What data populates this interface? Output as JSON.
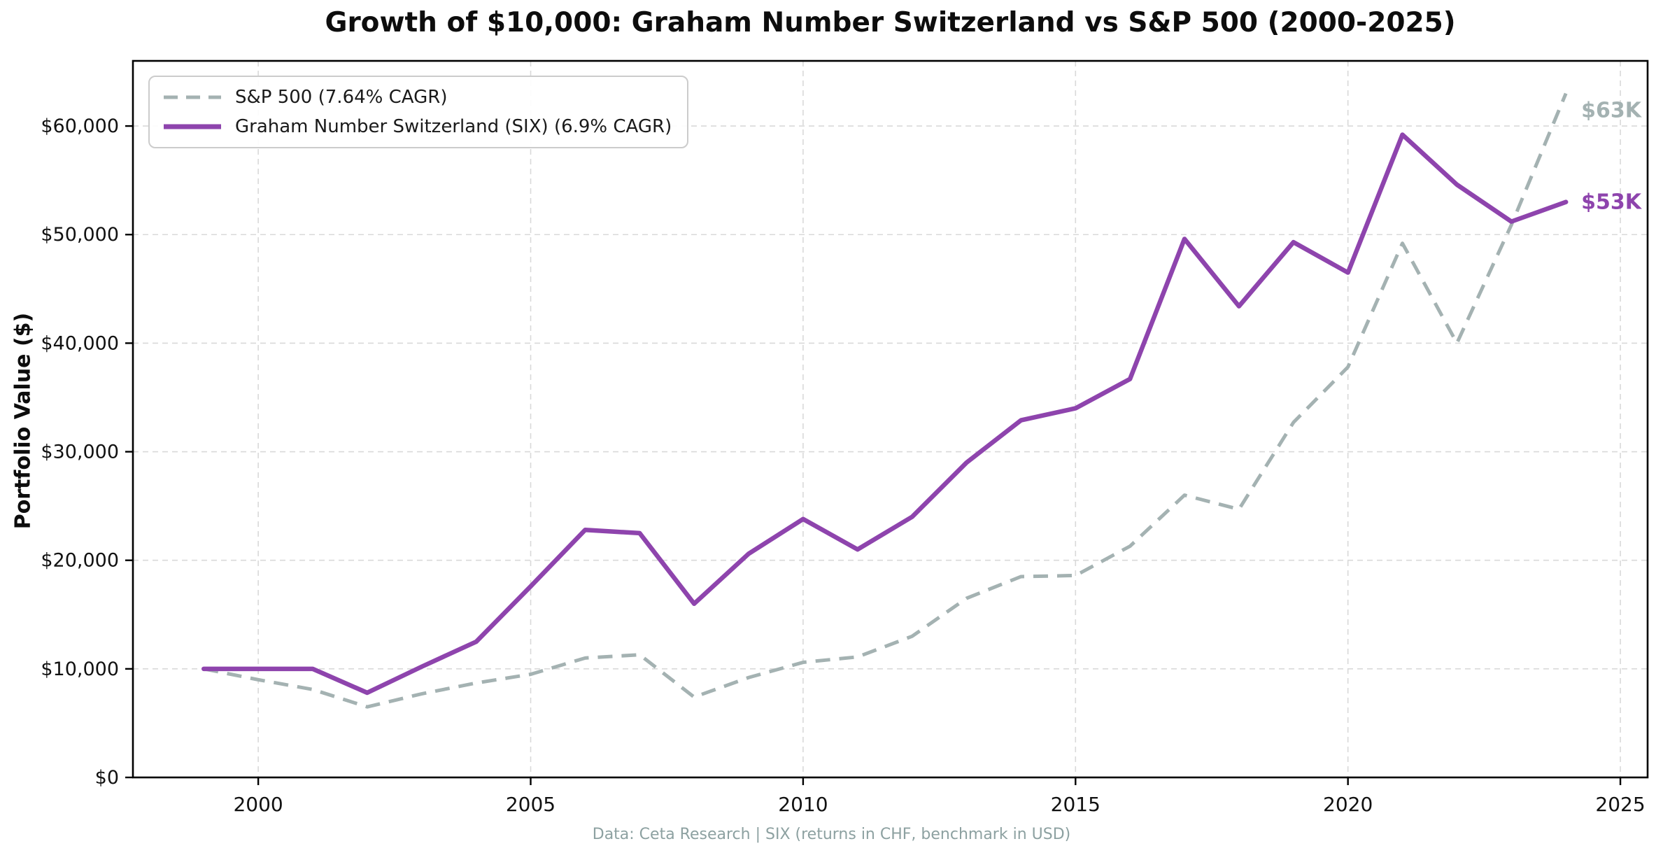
{
  "title": "Growth of $10,000: Graham Number Switzerland vs S&P 500 (2000-2025)",
  "footer": "Data: Ceta Research | SIX (returns in CHF, benchmark in USD)",
  "y_axis": {
    "title": "Portfolio Value ($)",
    "tick_labels": [
      "$0",
      "$10,000",
      "$20,000",
      "$30,000",
      "$40,000",
      "$50,000",
      "$60,000"
    ],
    "tick_values": [
      0,
      10000,
      20000,
      30000,
      40000,
      50000,
      60000
    ]
  },
  "x_axis": {
    "tick_labels": [
      "2000",
      "2005",
      "2010",
      "2015",
      "2020",
      "2025"
    ],
    "tick_values": [
      2000,
      2005,
      2010,
      2015,
      2020,
      2025
    ]
  },
  "legend": {
    "items": [
      {
        "label": "S&P 500 (7.64% CAGR)",
        "color": "#a4b2b2",
        "style": "dashed"
      },
      {
        "label": "Graham Number Switzerland (SIX) (6.9% CAGR)",
        "color": "#8e44ad",
        "style": "solid"
      }
    ]
  },
  "annotations": {
    "sp500_end": {
      "text": "$63K",
      "color": "#a4b2b2"
    },
    "graham_end": {
      "text": "$53K",
      "color": "#8e44ad"
    }
  },
  "chart_data": {
    "type": "line",
    "title": "Growth of $10,000: Graham Number Switzerland vs S&P 500 (2000-2025)",
    "xlabel": "",
    "ylabel": "Portfolio Value ($)",
    "x": [
      1999,
      2000,
      2001,
      2002,
      2003,
      2004,
      2005,
      2006,
      2007,
      2008,
      2009,
      2010,
      2011,
      2012,
      2013,
      2014,
      2015,
      2016,
      2017,
      2018,
      2019,
      2020,
      2021,
      2022,
      2023,
      2024
    ],
    "series": [
      {
        "name": "S&P 500 (7.64% CAGR)",
        "color": "#a4b2b2",
        "line_style": "dashed",
        "values": [
          10000,
          9000,
          8100,
          6500,
          7700,
          8700,
          9500,
          11000,
          11300,
          7400,
          9200,
          10600,
          11100,
          13000,
          16500,
          18500,
          18600,
          21300,
          26000,
          24700,
          32700,
          37800,
          49200,
          40000,
          50900,
          63000
        ]
      },
      {
        "name": "Graham Number Switzerland (SIX) (6.9% CAGR)",
        "color": "#8e44ad",
        "line_style": "solid",
        "values": [
          10000,
          10000,
          10000,
          7800,
          10200,
          12500,
          17600,
          22800,
          22500,
          16000,
          20600,
          23800,
          21000,
          24000,
          29000,
          32900,
          34000,
          36700,
          49600,
          43400,
          49300,
          46500,
          59200,
          54600,
          51200,
          53000
        ]
      }
    ],
    "end_labels": [
      "$63K",
      "$53K"
    ],
    "xlim": [
      1997.7,
      2025.5
    ],
    "ylim": [
      0,
      66000
    ],
    "grid": true,
    "grid_style": "dashed",
    "legend_position": "upper left"
  }
}
